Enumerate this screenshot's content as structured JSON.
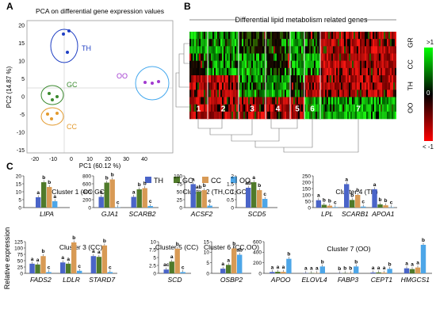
{
  "panel_letters": {
    "a": "A",
    "b": "B",
    "c": "C"
  },
  "pca": {
    "title": "PCA on differential gene expression values",
    "xlabel": "PC1 (60.12 %)",
    "ylabel": "PC2 (14.87 %)",
    "x_ticks": [
      "-20",
      "-10",
      "0",
      "10",
      "20",
      "30",
      "40"
    ],
    "y_ticks": [
      "20",
      "15",
      "10",
      "5",
      "0",
      "-5",
      "-10",
      "-15"
    ],
    "groups": [
      {
        "label": "TH",
        "color": "#1f3fc4"
      },
      {
        "label": "GC",
        "color": "#3b8a2f"
      },
      {
        "label": "CC",
        "color": "#e39a2d"
      },
      {
        "label": "OO",
        "color": "#a23ad0"
      }
    ]
  },
  "heatmap": {
    "title": "Differential lipid metabolism related genes",
    "rows": [
      "GR",
      "CC",
      "TH",
      "OO"
    ],
    "clusters": [
      "1",
      "2",
      "3",
      "4",
      "5",
      "6",
      "7"
    ],
    "scale_top": ">1",
    "scale_mid": "0",
    "scale_bottom": "< -1"
  },
  "legend": [
    {
      "label": "TH",
      "color": "#4a64c8"
    },
    {
      "label": "GC",
      "color": "#4f7a2a"
    },
    {
      "label": "CC",
      "color": "#d89a55"
    },
    {
      "label": "OO",
      "color": "#4da6e8"
    }
  ],
  "y_axis_label": "Relative expression",
  "chart_data": [
    {
      "type": "bar",
      "title": "Cluster 1 (CC,GC)",
      "categories": [
        "LIPA"
      ],
      "ylim": [
        0,
        20
      ],
      "ticks": [
        "0",
        "5",
        "10",
        "15",
        "20"
      ],
      "series": [
        {
          "name": "TH",
          "values": [
            6.5
          ]
        },
        {
          "name": "GC",
          "values": [
            16
          ]
        },
        {
          "name": "CC",
          "values": [
            13
          ]
        },
        {
          "name": "OO",
          "values": [
            4
          ]
        }
      ],
      "letters": [
        [
          "a",
          "b",
          "b",
          "a"
        ]
      ]
    },
    {
      "type": "bar",
      "categories": [
        "GJA1",
        "SCARB2"
      ],
      "ylim": [
        0,
        800
      ],
      "ticks": [
        "0",
        "200",
        "400",
        "600",
        "800"
      ],
      "series": [
        {
          "name": "TH",
          "values": [
            270,
            270
          ]
        },
        {
          "name": "GC",
          "values": [
            630,
            460
          ]
        },
        {
          "name": "CC",
          "values": [
            710,
            490
          ]
        },
        {
          "name": "OO",
          "values": [
            10,
            40
          ]
        }
      ],
      "letters": [
        [
          "a",
          "b",
          "b",
          "c"
        ],
        [
          "a",
          "b",
          "b",
          "c"
        ]
      ]
    },
    {
      "type": "bar",
      "title": "Cluster 2 (TH,CC,GC)",
      "categories": [
        "ACSF2"
      ],
      "ylim": [
        0,
        100
      ],
      "ticks": [
        "0",
        "25",
        "50",
        "75",
        "100"
      ],
      "series": [
        {
          "name": "TH",
          "values": [
            74
          ]
        },
        {
          "name": "GC",
          "values": [
            50
          ]
        },
        {
          "name": "CC",
          "values": [
            55
          ]
        },
        {
          "name": "OO",
          "values": [
            6
          ]
        }
      ],
      "letters": [
        [
          "a",
          "ab",
          "b",
          "c"
        ]
      ]
    },
    {
      "type": "bar",
      "categories": [
        "SCD5"
      ],
      "ylim": [
        0,
        2
      ],
      "ticks": [
        "0",
        "0.5",
        "1",
        "1.5",
        "2"
      ],
      "series": [
        {
          "name": "TH",
          "values": [
            1.25
          ]
        },
        {
          "name": "GC",
          "values": [
            1.6
          ]
        },
        {
          "name": "CC",
          "values": [
            1.1
          ]
        },
        {
          "name": "OO",
          "values": [
            0.55
          ]
        }
      ],
      "letters": [
        [
          "ab",
          "a",
          "b",
          "c"
        ]
      ]
    },
    {
      "type": "bar",
      "title": "Cluster 4 (TH)",
      "categories": [
        "LPL",
        "SCARB1",
        "APOA1"
      ],
      "ylim": [
        0,
        250
      ],
      "ticks": [
        "0",
        "50",
        "100",
        "150",
        "200",
        "250"
      ],
      "series": [
        {
          "name": "TH",
          "values": [
            58,
            185,
            145
          ]
        },
        {
          "name": "GC",
          "values": [
            22,
            60,
            25
          ]
        },
        {
          "name": "CC",
          "values": [
            15,
            100,
            18
          ]
        },
        {
          "name": "OO",
          "values": [
            4,
            8,
            3
          ]
        }
      ],
      "letters": [
        [
          "a",
          "b",
          "b",
          "c"
        ],
        [
          "a",
          "b",
          "b",
          "c"
        ],
        [
          "a",
          "b",
          "b",
          "c"
        ]
      ]
    },
    {
      "type": "bar",
      "title": "Cluster 3 (CC)",
      "categories": [
        "FADS2",
        "LDLR",
        "STARD7"
      ],
      "ylim": [
        0,
        125
      ],
      "ticks": [
        "0",
        "25",
        "50",
        "75",
        "100",
        "125"
      ],
      "series": [
        {
          "name": "TH",
          "values": [
            38,
            43,
            68
          ]
        },
        {
          "name": "GC",
          "values": [
            35,
            38,
            65
          ]
        },
        {
          "name": "CC",
          "values": [
            68,
            122,
            110
          ]
        },
        {
          "name": "OO",
          "values": [
            5,
            10,
            5
          ]
        }
      ],
      "letters": [
        [
          "a",
          "a",
          "b",
          "c"
        ],
        [
          "a",
          "a",
          "b",
          "c"
        ],
        [
          "a",
          "a",
          "b",
          "c"
        ]
      ]
    },
    {
      "type": "bar",
      "title": "Cluster 5 (CC)",
      "categories": [
        "SCD"
      ],
      "ylim": [
        0,
        10
      ],
      "ticks": [
        "0",
        "2.5",
        "5",
        "7.5",
        "10"
      ],
      "series": [
        {
          "name": "TH",
          "values": [
            1.2
          ]
        },
        {
          "name": "GC",
          "values": [
            3.7
          ]
        },
        {
          "name": "CC",
          "values": [
            7.8
          ]
        },
        {
          "name": "OO",
          "values": [
            0.4
          ]
        }
      ],
      "letters": [
        [
          "ac",
          "a",
          "b",
          "c"
        ]
      ]
    },
    {
      "type": "bar",
      "title": "Cluster 6 (CC,OO)",
      "categories": [
        "OSBP2"
      ],
      "ylim": [
        0,
        15
      ],
      "ticks": [
        "0",
        "5",
        "10",
        "15"
      ],
      "series": [
        {
          "name": "TH",
          "values": [
            2.2
          ]
        },
        {
          "name": "GC",
          "values": [
            4
          ]
        },
        {
          "name": "CC",
          "values": [
            11.8
          ]
        },
        {
          "name": "OO",
          "values": [
            8.8
          ]
        }
      ],
      "letters": [
        [
          "a",
          "a",
          "b",
          "ab"
        ]
      ]
    },
    {
      "type": "bar",
      "title": "Cluster 7 (OO)",
      "categories": [
        "APOO",
        "ELOVL4",
        "FABP3",
        "CEPT1",
        "HMGCS1"
      ],
      "ylim": [
        0,
        600
      ],
      "ticks": [
        "0",
        "200",
        "400",
        "600"
      ],
      "series": [
        {
          "name": "TH",
          "values": [
            25,
            5,
            3,
            15,
            95
          ]
        },
        {
          "name": "GC",
          "values": [
            30,
            6,
            4,
            18,
            80
          ]
        },
        {
          "name": "CC",
          "values": [
            28,
            5,
            4,
            14,
            110
          ]
        },
        {
          "name": "OO",
          "values": [
            275,
            130,
            130,
            85,
            540
          ]
        }
      ],
      "letters": [
        [
          "a",
          "a",
          "a",
          "b"
        ],
        [
          "a",
          "a",
          "a",
          "b"
        ],
        [
          "b",
          "b",
          "b",
          "b"
        ],
        [
          "a",
          "a",
          "a",
          "b"
        ],
        [
          "a",
          "a",
          "a",
          "b"
        ]
      ]
    }
  ]
}
